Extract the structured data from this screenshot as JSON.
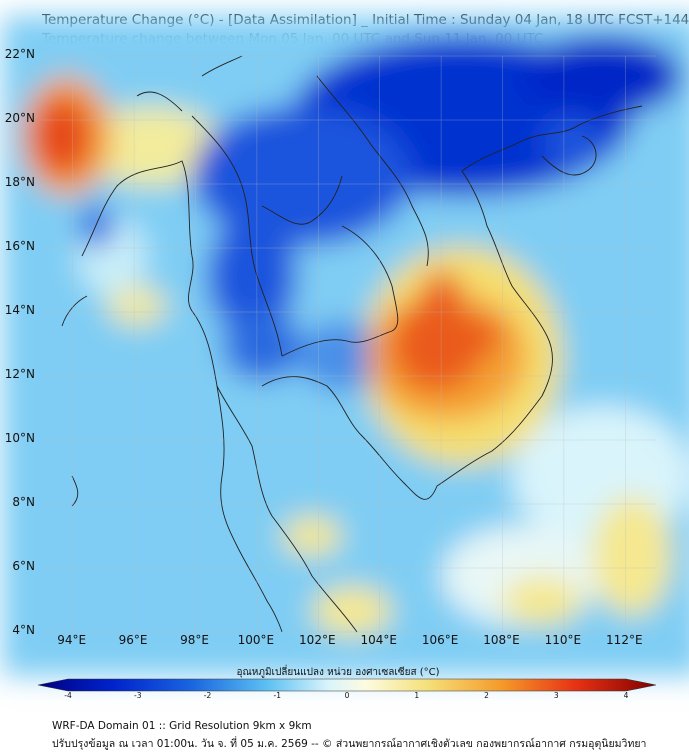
{
  "title": {
    "line1": "Temperature Change (°C) - [Data Assimilation] _ Initial Time : Sunday 04 Jan, 18 UTC FCST+144",
    "line2": "Temperature change between Mon 05 Jan, 00 UTC and Sun 11 Jan, 00 UTC"
  },
  "map": {
    "lat_labels": [
      "22°N",
      "20°N",
      "18°N",
      "16°N",
      "14°N",
      "12°N",
      "10°N",
      "8°N",
      "6°N",
      "4°N"
    ],
    "lon_labels": [
      "94°E",
      "96°E",
      "98°E",
      "100°E",
      "102°E",
      "104°E",
      "106°E",
      "108°E",
      "110°E",
      "112°E"
    ],
    "colors": {
      "background": "#8fd3f5",
      "deep_blue": "#0022cc",
      "blue": "#1a66e0",
      "light_blue": "#5cc0f2",
      "pale": "#d9f4fb",
      "yellow": "#f5e07a",
      "orange": "#f59a2a",
      "red": "#e63214",
      "coastline": "#222222"
    }
  },
  "colorbar": {
    "label": "อุณหภูมิเปลี่ยนแปลง หน่วย องศาเซลเซียส (°C)",
    "ticks": [
      "-4",
      "-3",
      "-2",
      "-1",
      "0",
      "1",
      "2",
      "3",
      "4"
    ],
    "min": -4,
    "max": 4
  },
  "footer": {
    "line1": "WRF-DA Domain 01 :: Grid Resolution 9km x 9km",
    "line2": "ปรับปรุงข้อมูล ณ เวลา 01:00น. วัน จ. ที่ 05 ม.ค. 2569 -- © ส่วนพยากรณ์อากาศเชิงตัวเลข กองพยากรณ์อากาศ กรมอุตุนิยมวิทยา"
  }
}
